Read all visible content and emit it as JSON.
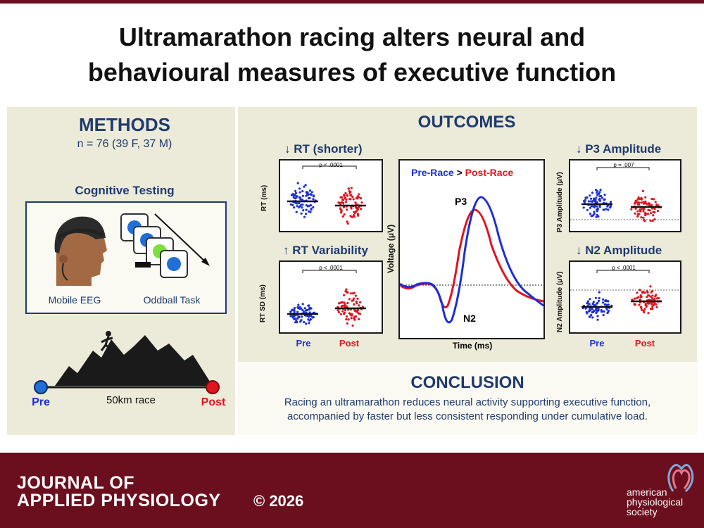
{
  "title_line1": "Ultramarathon racing alters neural and",
  "title_line2": "behavioural measures of executive function",
  "methods": {
    "heading": "METHODS",
    "sample": "n = 76 (39 F, 37 M)",
    "cognitive_heading": "Cognitive Testing",
    "eeg_label": "Mobile EEG",
    "oddball_label": "Oddball Task",
    "race_label": "50km race",
    "pre_label": "Pre",
    "post_label": "Post"
  },
  "outcomes": {
    "heading": "OUTCOMES",
    "rt_title": "↓ RT (shorter)",
    "rt_ylabel": "RT (ms)",
    "rt_p": "p < .0001",
    "rtv_title": "↑ RT Variability",
    "rtv_ylabel": "RT SD (ms)",
    "rtv_p": "p < .0001",
    "pre_label": "Pre",
    "post_label": "Post",
    "erp_legend_pre": "Pre-Race",
    "erp_legend_sep": " > ",
    "erp_legend_post": "Post-Race",
    "erp_ylabel": "Voltage (μV)",
    "erp_xlabel": "Time (ms)",
    "p3_label": "P3",
    "n2_label": "N2",
    "p3_title": "↓ P3 Amplitude",
    "p3_ylabel": "P3 Amplitude (μV)",
    "p3_p": "p = .007",
    "n2_title": "↓ N2 Amplitude",
    "n2_ylabel": "N2 Amplitude (μV)",
    "n2_p": "p < .0001"
  },
  "conclusion": {
    "heading": "CONCLUSION",
    "line1": "Racing an ultramarathon reduces neural activity supporting executive function,",
    "line2": "accompanied by faster but less consistent responding under cumulative load."
  },
  "footer": {
    "journal_line1": "JOURNAL OF",
    "journal_line2": "APPLIED PHYSIOLOGY",
    "copyright": "© 2026",
    "society_line1": "american",
    "society_line2": "physiological",
    "society_line3": "society"
  },
  "colors": {
    "pre": "#1a2fd6",
    "post": "#e0141e",
    "navy": "#1f3a6e",
    "maroon": "#6b0f1e"
  }
}
